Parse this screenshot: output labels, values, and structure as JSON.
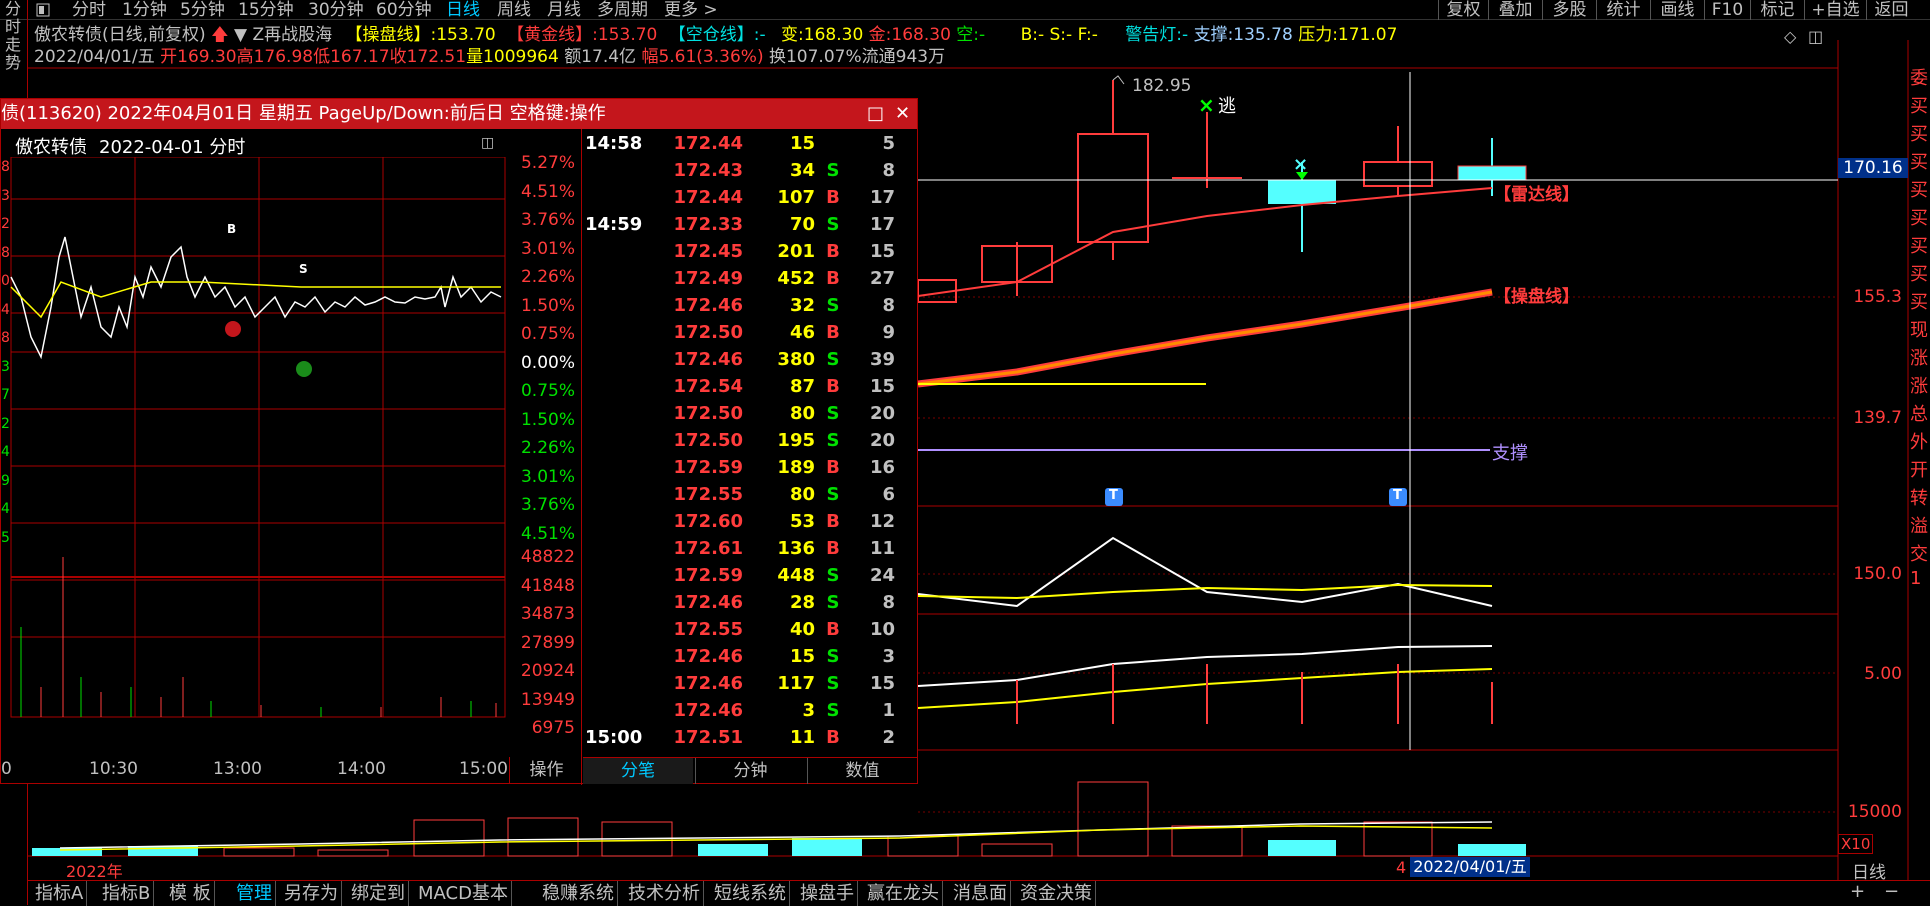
{
  "toolbar": {
    "periods": [
      "分时",
      "1分钟",
      "5分钟",
      "15分钟",
      "30分钟",
      "60分钟",
      "日线",
      "周线",
      "月线",
      "多周期",
      "更多 >"
    ],
    "right_buttons": [
      "复权",
      "叠加",
      "多股",
      "统计",
      "画线",
      "F10",
      "标记",
      "+自选",
      "返回"
    ]
  },
  "left_strip": {
    "text": "分时走势"
  },
  "info": {
    "name": "傲农转债(日线,前复权)",
    "indicator": "Z再战股海",
    "ops_label": "【操盘线】",
    "ops_val": ":153.70",
    "gold_label": "【黄金线】",
    "gold_val": ":153.70",
    "empty_label": "【空仓线】",
    "empty_val": ":-",
    "bian": "变:168.30",
    "jin": "金:168.30",
    "kong": "空:-",
    "bsf": "B:- S:- F:-",
    "warn": "警告灯:-",
    "support": "支撑:135.78",
    "pressure": "压力:171.07"
  },
  "ohlc": {
    "date": "2022/04/01/五",
    "open": "开169.30",
    "high": "高176.98",
    "low": "低167.17",
    "close": "收172.51",
    "vol": "量1009964",
    "amt": "额17.4亿",
    "amp": "幅5.61(3.36%)",
    "turn": "换107.07%",
    "float": "流通943万"
  },
  "popup": {
    "title": "债(113620) 2022年04月01日 星期五 PageUp/Down:前后日 空格键:操作",
    "subtitle_name": "傲农转债",
    "subtitle_date": "2022-04-01 分时",
    "pct_labels": [
      "5.27%",
      "4.51%",
      "3.76%",
      "3.01%",
      "2.26%",
      "1.50%",
      "0.75%",
      "0.00%",
      "0.75%",
      "1.50%",
      "2.26%",
      "3.01%",
      "3.76%",
      "4.51%"
    ],
    "vol_labels": [
      "48822",
      "41848",
      "34873",
      "27899",
      "20924",
      "13949",
      "6975"
    ],
    "time_labels": [
      "10:30",
      "13:00",
      "14:00",
      "15:00"
    ],
    "left_edge_labels": [
      "8",
      "3",
      "2",
      "8",
      "0",
      "4",
      "8",
      "3",
      "7",
      "2",
      "4",
      "9",
      "4",
      "5"
    ],
    "marker_b": "B",
    "marker_s": "S",
    "op_label": "操作",
    "tabs": [
      "分笔",
      "分钟",
      "数值"
    ],
    "ticks": [
      {
        "time": "14:58",
        "price": "172.44",
        "vol": "15",
        "bs": "",
        "n": "5"
      },
      {
        "time": "",
        "price": "172.43",
        "vol": "34",
        "bs": "S",
        "n": "8"
      },
      {
        "time": "",
        "price": "172.44",
        "vol": "107",
        "bs": "B",
        "n": "17"
      },
      {
        "time": "14:59",
        "price": "172.33",
        "vol": "70",
        "bs": "S",
        "n": "17"
      },
      {
        "time": "",
        "price": "172.45",
        "vol": "201",
        "bs": "B",
        "n": "15"
      },
      {
        "time": "",
        "price": "172.49",
        "vol": "452",
        "bs": "B",
        "n": "27"
      },
      {
        "time": "",
        "price": "172.46",
        "vol": "32",
        "bs": "S",
        "n": "8"
      },
      {
        "time": "",
        "price": "172.50",
        "vol": "46",
        "bs": "B",
        "n": "9"
      },
      {
        "time": "",
        "price": "172.46",
        "vol": "380",
        "bs": "S",
        "n": "39"
      },
      {
        "time": "",
        "price": "172.54",
        "vol": "87",
        "bs": "B",
        "n": "15"
      },
      {
        "time": "",
        "price": "172.50",
        "vol": "80",
        "bs": "S",
        "n": "20"
      },
      {
        "time": "",
        "price": "172.50",
        "vol": "195",
        "bs": "S",
        "n": "20"
      },
      {
        "time": "",
        "price": "172.59",
        "vol": "189",
        "bs": "B",
        "n": "16"
      },
      {
        "time": "",
        "price": "172.55",
        "vol": "80",
        "bs": "S",
        "n": "6"
      },
      {
        "time": "",
        "price": "172.60",
        "vol": "53",
        "bs": "B",
        "n": "12"
      },
      {
        "time": "",
        "price": "172.61",
        "vol": "136",
        "bs": "B",
        "n": "11"
      },
      {
        "time": "",
        "price": "172.59",
        "vol": "448",
        "bs": "S",
        "n": "24"
      },
      {
        "time": "",
        "price": "172.46",
        "vol": "28",
        "bs": "S",
        "n": "8"
      },
      {
        "time": "",
        "price": "172.55",
        "vol": "40",
        "bs": "B",
        "n": "10"
      },
      {
        "time": "",
        "price": "172.46",
        "vol": "15",
        "bs": "S",
        "n": "3"
      },
      {
        "time": "",
        "price": "172.46",
        "vol": "117",
        "bs": "S",
        "n": "15"
      },
      {
        "time": "",
        "price": "172.46",
        "vol": "3",
        "bs": "S",
        "n": "1"
      },
      {
        "time": "15:00",
        "price": "172.51",
        "vol": "11",
        "bs": "B",
        "n": "2"
      }
    ]
  },
  "chart": {
    "high_label": "182.95",
    "escape_label": "逃",
    "radar_label": "【雷达线】",
    "ops_label": "【操盘线】",
    "support_label": "支撑",
    "t_marker": "T",
    "crosshair_price": "170.16",
    "axis_main": [
      "155.3",
      "139.7"
    ],
    "axis_ind1": "150.0",
    "axis_ind2": "5.00",
    "axis_vol": "15000",
    "x10": "X10",
    "year": "2022年",
    "date_box": "2022/04/01/五",
    "date_num": "4",
    "day_label": "日线",
    "right_chars": [
      "委",
      "买",
      "买",
      "买",
      "买",
      "买",
      "买",
      "买",
      "买",
      "现",
      "涨",
      "涨",
      "总",
      "外",
      "开",
      "转",
      "溢",
      "交",
      "1"
    ]
  },
  "bottom_tabs": [
    "指标A",
    "指标B",
    "模 板",
    "管理",
    "另存为",
    "绑定到",
    "MACD基本",
    "稳赚系统",
    "技术分析",
    "短线系统",
    "操盘手",
    "赢在龙头",
    "消息面",
    "资金决策"
  ],
  "colors": {
    "up": "#ff3c3c",
    "down": "#54ffff",
    "ops_line": "#ff8c00",
    "panel_red": "#c4161c"
  }
}
